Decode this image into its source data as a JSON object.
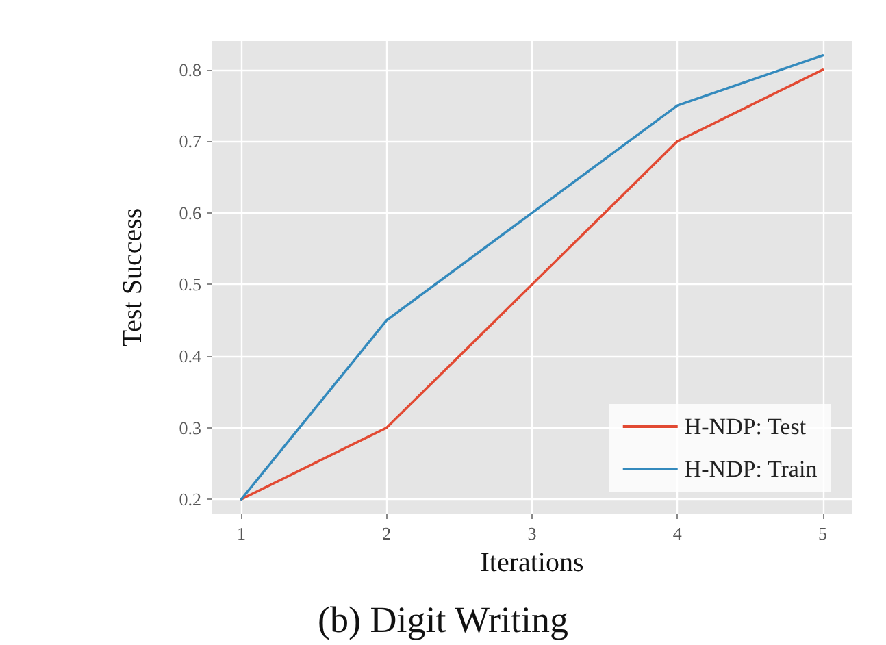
{
  "chart_data": {
    "type": "line",
    "title": "(b) Digit Writing",
    "xlabel": "Iterations",
    "ylabel": "Test Success",
    "x": [
      1,
      2,
      3,
      4,
      5
    ],
    "series": [
      {
        "name": "H-NDP: Test",
        "color": "#e24a33",
        "values": [
          0.2,
          0.3,
          0.5,
          0.7,
          0.8
        ]
      },
      {
        "name": "H-NDP: Train",
        "color": "#348abd",
        "values": [
          0.2,
          0.45,
          0.6,
          0.75,
          0.82
        ]
      }
    ],
    "xlim": [
      0.8,
      5.2
    ],
    "xticks": [
      1,
      2,
      3,
      4,
      5
    ],
    "ylim": [
      0.18,
      0.84
    ],
    "yticks": [
      0.2,
      0.3,
      0.4,
      0.5,
      0.6,
      0.7,
      0.8
    ],
    "grid": true,
    "legend": "bottom right",
    "marker": "none",
    "line_style": "solid"
  }
}
